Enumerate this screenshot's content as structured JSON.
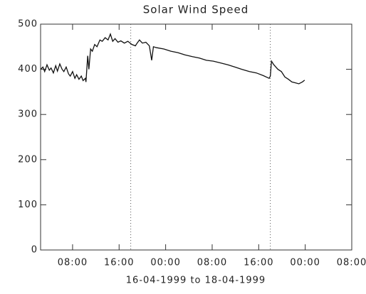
{
  "chart_data": {
    "type": "line",
    "title": "Solar Wind Speed",
    "xlabel": "16-04-1999 to 18-04-1999",
    "xlim": [
      2.5,
      56
    ],
    "xticks": [
      {
        "value": 8,
        "label": "08:00"
      },
      {
        "value": 16,
        "label": "16:00"
      },
      {
        "value": 24,
        "label": "00:00"
      },
      {
        "value": 32,
        "label": "08:00"
      },
      {
        "value": 40,
        "label": "16:00"
      },
      {
        "value": 48,
        "label": "00:00"
      },
      {
        "value": 56,
        "label": "08:00"
      }
    ],
    "ylim": [
      0,
      500
    ],
    "yticks": [
      0,
      100,
      200,
      300,
      400,
      500
    ],
    "vlines": [
      18,
      42
    ],
    "color": "#111111",
    "x": [
      2.5,
      2.9,
      3.2,
      3.6,
      4.0,
      4.3,
      4.7,
      5.1,
      5.4,
      5.8,
      6.2,
      6.5,
      6.9,
      7.3,
      7.6,
      8.0,
      8.4,
      8.7,
      9.1,
      9.5,
      9.8,
      10.2,
      10.3,
      10.6,
      10.8,
      11.1,
      11.4,
      11.8,
      12.2,
      12.7,
      13.1,
      13.6,
      14.1,
      14.5,
      14.9,
      15.3,
      15.8,
      16.3,
      16.9,
      17.5,
      18.2,
      18.8,
      19.1,
      19.5,
      20.0,
      20.6,
      21.2,
      21.6,
      21.9,
      22.4,
      23.7,
      24.9,
      26.1,
      27.3,
      28.6,
      29.8,
      31.0,
      32.2,
      33.5,
      34.7,
      35.9,
      37.1,
      38.4,
      39.6,
      40.8,
      41.8,
      42.0,
      42.2,
      42.6,
      43.3,
      43.9,
      44.5,
      45.1,
      45.7,
      46.3,
      46.9,
      47.5,
      47.9
    ],
    "values": [
      400,
      405,
      395,
      410,
      398,
      403,
      392,
      408,
      396,
      412,
      400,
      395,
      405,
      390,
      385,
      395,
      380,
      388,
      378,
      385,
      375,
      380,
      372,
      430,
      400,
      445,
      440,
      455,
      450,
      465,
      462,
      470,
      465,
      478,
      462,
      468,
      460,
      463,
      458,
      462,
      455,
      452,
      458,
      465,
      458,
      460,
      452,
      420,
      450,
      448,
      445,
      440,
      437,
      432,
      428,
      425,
      420,
      418,
      414,
      410,
      405,
      400,
      395,
      392,
      386,
      380,
      385,
      418,
      410,
      400,
      395,
      383,
      378,
      372,
      370,
      368,
      372,
      376
    ]
  }
}
